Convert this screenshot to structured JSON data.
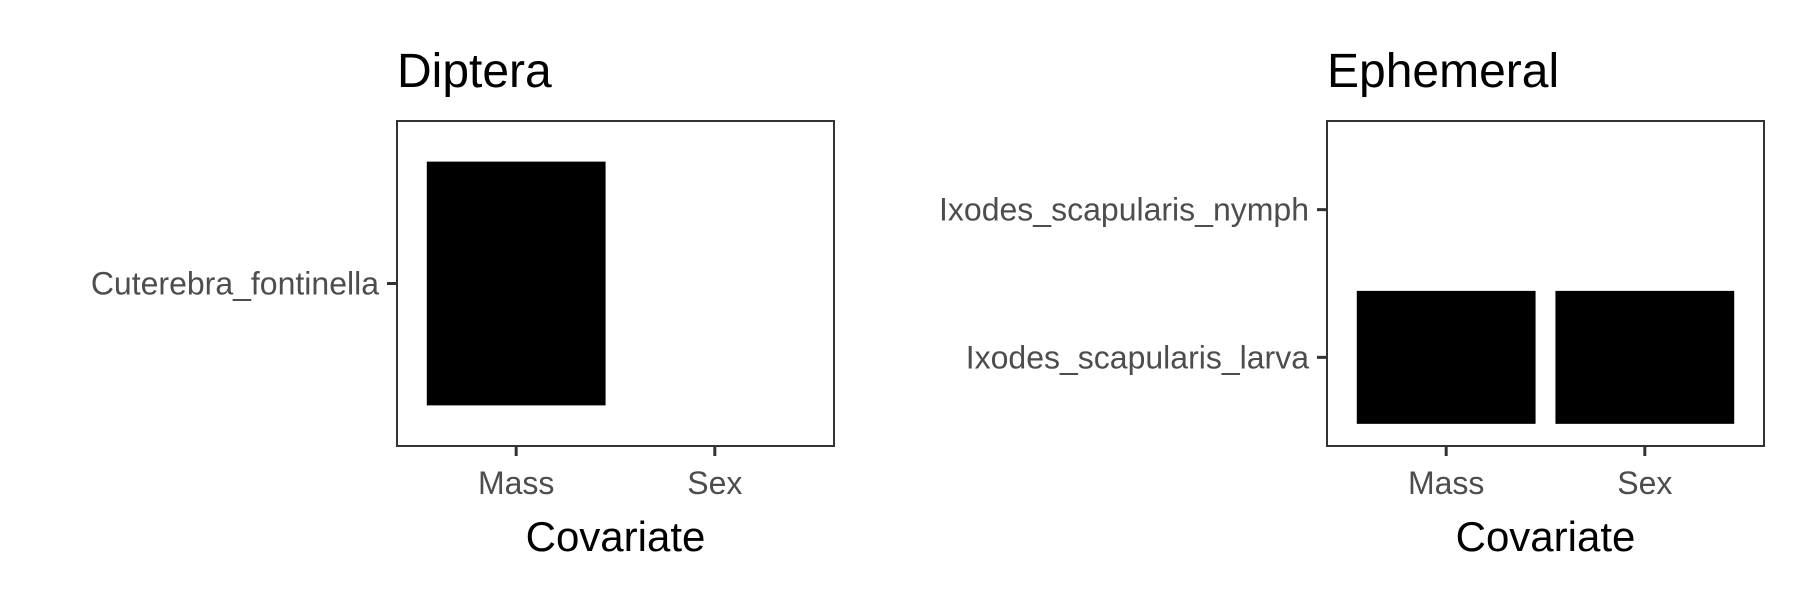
{
  "chart_data": [
    {
      "type": "heatmap",
      "title": "Diptera",
      "xlabel": "Covariate",
      "ylabel": "",
      "x_categories": [
        "Mass",
        "Sex"
      ],
      "y_categories": [
        "Cuterebra_fontinella"
      ],
      "cells": [
        {
          "x": "Mass",
          "y": "Cuterebra_fontinella",
          "value": 1
        }
      ],
      "fill_color": "#000000",
      "grid": false,
      "legend": "none"
    },
    {
      "type": "heatmap",
      "title": "Ephemeral",
      "xlabel": "Covariate",
      "ylabel": "",
      "x_categories": [
        "Mass",
        "Sex"
      ],
      "y_categories": [
        "Ixodes_scapularis_larva",
        "Ixodes_scapularis_nymph"
      ],
      "cells": [
        {
          "x": "Mass",
          "y": "Ixodes_scapularis_larva",
          "value": 1
        },
        {
          "x": "Sex",
          "y": "Ixodes_scapularis_larva",
          "value": 1
        }
      ],
      "fill_color": "#000000",
      "grid": false,
      "legend": "none"
    }
  ]
}
